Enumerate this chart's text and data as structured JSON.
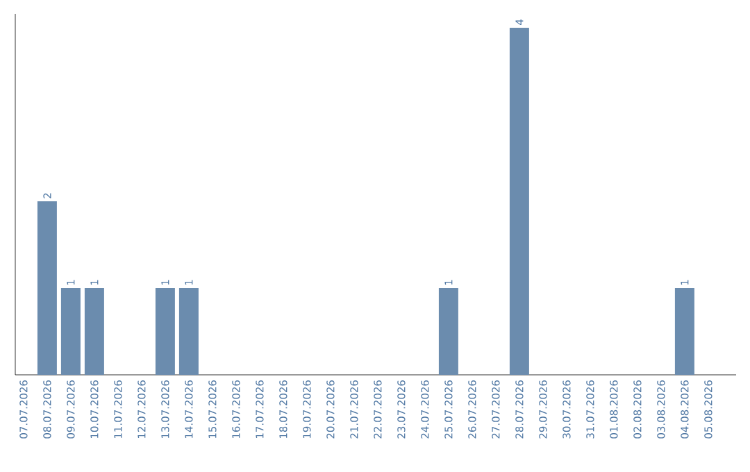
{
  "chart_data": {
    "type": "bar",
    "categories": [
      "07.07.2026",
      "08.07.2026",
      "09.07.2026",
      "10.07.2026",
      "11.07.2026",
      "12.07.2026",
      "13.07.2026",
      "14.07.2026",
      "15.07.2026",
      "16.07.2026",
      "17.07.2026",
      "18.07.2026",
      "19.07.2026",
      "20.07.2026",
      "21.07.2026",
      "22.07.2026",
      "23.07.2026",
      "24.07.2026",
      "25.07.2026",
      "26.07.2026",
      "27.07.2026",
      "28.07.2026",
      "29.07.2026",
      "30.07.2026",
      "31.07.2026",
      "01.08.2026",
      "02.08.2026",
      "03.08.2026",
      "04.08.2026",
      "05.08.2026"
    ],
    "values": [
      0,
      2,
      1,
      1,
      0,
      0,
      1,
      1,
      0,
      0,
      0,
      0,
      0,
      0,
      0,
      0,
      0,
      0,
      1,
      0,
      0,
      4,
      0,
      0,
      0,
      0,
      0,
      0,
      1,
      0
    ],
    "value_labels": [
      null,
      "2",
      "1",
      "1",
      null,
      null,
      "1",
      "1",
      null,
      null,
      null,
      null,
      null,
      null,
      null,
      null,
      null,
      null,
      "1",
      null,
      null,
      "4",
      null,
      null,
      null,
      null,
      null,
      null,
      "1",
      null
    ],
    "color": "#6b8cae",
    "ylim": [
      0,
      4.16
    ],
    "tick_labels": "x"
  }
}
